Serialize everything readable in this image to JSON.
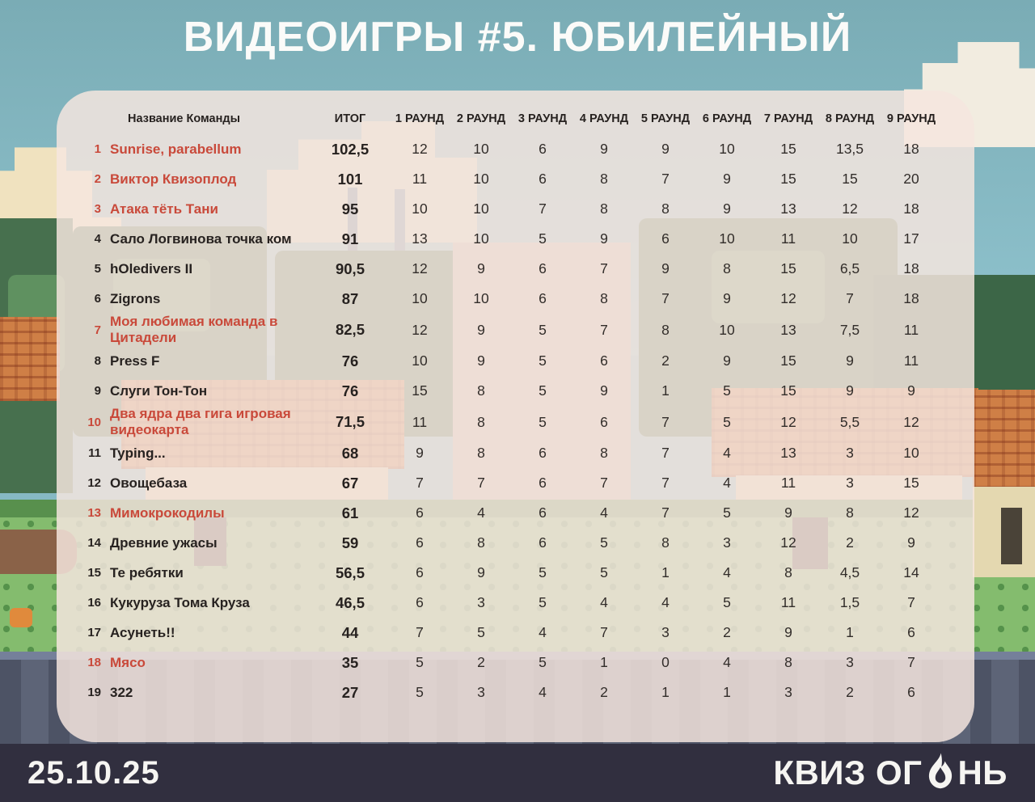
{
  "title": "ВИДЕОИГРЫ #5. ЮБИЛЕЙНЫЙ",
  "colors": {
    "accent_red": "#c9493a",
    "text_dark": "#272220",
    "footer_bg": "#312f3f",
    "sky_teal": "#86b9c4"
  },
  "footer": {
    "date": "25.10.25",
    "logo_prefix": "КВИЗ ОГ",
    "logo_suffix": "НЬ",
    "logo_icon": "flame-icon"
  },
  "table": {
    "name_header": "Название Команды",
    "total_header": "ИТОГ",
    "round_headers": [
      "1 РАУНД",
      "2 РАУНД",
      "3 РАУНД",
      "4 РАУНД",
      "5 РАУНД",
      "6 РАУНД",
      "7 РАУНД",
      "8 РАУНД",
      "9 РАУНД"
    ],
    "rows": [
      {
        "rank": "1",
        "name": "Sunrise, parabellum",
        "total": "102,5",
        "rounds": [
          "12",
          "10",
          "6",
          "9",
          "9",
          "10",
          "15",
          "13,5",
          "18"
        ],
        "highlight": true
      },
      {
        "rank": "2",
        "name": "Виктор Квизоплод",
        "total": "101",
        "rounds": [
          "11",
          "10",
          "6",
          "8",
          "7",
          "9",
          "15",
          "15",
          "20"
        ],
        "highlight": true
      },
      {
        "rank": "3",
        "name": "Атака тёть Тани",
        "total": "95",
        "rounds": [
          "10",
          "10",
          "7",
          "8",
          "8",
          "9",
          "13",
          "12",
          "18"
        ],
        "highlight": true
      },
      {
        "rank": "4",
        "name": "Сало Логвинова точка ком",
        "total": "91",
        "rounds": [
          "13",
          "10",
          "5",
          "9",
          "6",
          "10",
          "11",
          "10",
          "17"
        ],
        "highlight": false
      },
      {
        "rank": "5",
        "name": "hOledivers II",
        "total": "90,5",
        "rounds": [
          "12",
          "9",
          "6",
          "7",
          "9",
          "8",
          "15",
          "6,5",
          "18"
        ],
        "highlight": false
      },
      {
        "rank": "6",
        "name": "Zigrons",
        "total": "87",
        "rounds": [
          "10",
          "10",
          "6",
          "8",
          "7",
          "9",
          "12",
          "7",
          "18"
        ],
        "highlight": false
      },
      {
        "rank": "7",
        "name": "Моя любимая команда в Цитадели",
        "total": "82,5",
        "rounds": [
          "12",
          "9",
          "5",
          "7",
          "8",
          "10",
          "13",
          "7,5",
          "11"
        ],
        "highlight": true
      },
      {
        "rank": "8",
        "name": "Press F",
        "total": "76",
        "rounds": [
          "10",
          "9",
          "5",
          "6",
          "2",
          "9",
          "15",
          "9",
          "11"
        ],
        "highlight": false
      },
      {
        "rank": "9",
        "name": "Слуги Тон-Тон",
        "total": "76",
        "rounds": [
          "15",
          "8",
          "5",
          "9",
          "1",
          "5",
          "15",
          "9",
          "9"
        ],
        "highlight": false
      },
      {
        "rank": "10",
        "name": "Два ядра два гига игровая видеокарта",
        "total": "71,5",
        "rounds": [
          "11",
          "8",
          "5",
          "6",
          "7",
          "5",
          "12",
          "5,5",
          "12"
        ],
        "highlight": true
      },
      {
        "rank": "11",
        "name": "Typing...",
        "total": "68",
        "rounds": [
          "9",
          "8",
          "6",
          "8",
          "7",
          "4",
          "13",
          "3",
          "10"
        ],
        "highlight": false
      },
      {
        "rank": "12",
        "name": "Овощебаза",
        "total": "67",
        "rounds": [
          "7",
          "7",
          "6",
          "7",
          "7",
          "4",
          "11",
          "3",
          "15"
        ],
        "highlight": false
      },
      {
        "rank": "13",
        "name": "Мимокрокодилы",
        "total": "61",
        "rounds": [
          "6",
          "4",
          "6",
          "4",
          "7",
          "5",
          "9",
          "8",
          "12"
        ],
        "highlight": true
      },
      {
        "rank": "14",
        "name": "Древние ужасы",
        "total": "59",
        "rounds": [
          "6",
          "8",
          "6",
          "5",
          "8",
          "3",
          "12",
          "2",
          "9"
        ],
        "highlight": false
      },
      {
        "rank": "15",
        "name": "Те ребятки",
        "total": "56,5",
        "rounds": [
          "6",
          "9",
          "5",
          "5",
          "1",
          "4",
          "8",
          "4,5",
          "14"
        ],
        "highlight": false
      },
      {
        "rank": "16",
        "name": "Кукуруза Тома Круза",
        "total": "46,5",
        "rounds": [
          "6",
          "3",
          "5",
          "4",
          "4",
          "5",
          "11",
          "1,5",
          "7"
        ],
        "highlight": false
      },
      {
        "rank": "17",
        "name": "Асунеть!!",
        "total": "44",
        "rounds": [
          "7",
          "5",
          "4",
          "7",
          "3",
          "2",
          "9",
          "1",
          "6"
        ],
        "highlight": false
      },
      {
        "rank": "18",
        "name": "Мясо",
        "total": "35",
        "rounds": [
          "5",
          "2",
          "5",
          "1",
          "0",
          "4",
          "8",
          "3",
          "7"
        ],
        "highlight": true
      },
      {
        "rank": "19",
        "name": "322",
        "total": "27",
        "rounds": [
          "5",
          "3",
          "4",
          "2",
          "1",
          "1",
          "3",
          "2",
          "6"
        ],
        "highlight": false
      }
    ]
  }
}
